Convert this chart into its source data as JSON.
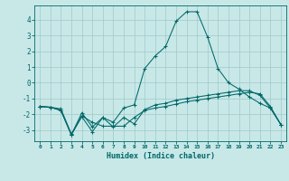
{
  "background_color": "#c8e8e8",
  "grid_color": "#a0c8c8",
  "line_color": "#006868",
  "xlabel": "Humidex (Indice chaleur)",
  "xlim": [
    -0.5,
    23.5
  ],
  "ylim": [
    -3.7,
    4.9
  ],
  "yticks": [
    -3,
    -2,
    -1,
    0,
    1,
    2,
    3,
    4
  ],
  "xticks": [
    0,
    1,
    2,
    3,
    4,
    5,
    6,
    7,
    8,
    9,
    10,
    11,
    12,
    13,
    14,
    15,
    16,
    17,
    18,
    19,
    20,
    21,
    22,
    23
  ],
  "series": [
    {
      "x": [
        0,
        1,
        2,
        3,
        4,
        5,
        6,
        7,
        8,
        9,
        10,
        11,
        12,
        13,
        14,
        15,
        16,
        17,
        18,
        19,
        20,
        21,
        22,
        23
      ],
      "y": [
        -1.5,
        -1.55,
        -1.65,
        -3.25,
        -2.1,
        -2.5,
        -2.75,
        -2.75,
        -2.75,
        -2.2,
        -1.75,
        -1.6,
        -1.5,
        -1.35,
        -1.2,
        -1.1,
        -1.0,
        -0.9,
        -0.8,
        -0.7,
        -0.6,
        -0.7,
        -1.5,
        -2.65
      ]
    },
    {
      "x": [
        0,
        1,
        2,
        3,
        4,
        5,
        6,
        7,
        8,
        9,
        10,
        11,
        12,
        13,
        14,
        15,
        16,
        17,
        18,
        19,
        20,
        21,
        22,
        23
      ],
      "y": [
        -1.5,
        -1.55,
        -1.75,
        -3.3,
        -2.15,
        -3.1,
        -2.2,
        -2.8,
        -2.2,
        -2.6,
        -1.7,
        -1.4,
        -1.3,
        -1.1,
        -1.0,
        -0.9,
        -0.8,
        -0.7,
        -0.6,
        -0.5,
        -0.5,
        -0.8,
        -1.6,
        -2.65
      ]
    },
    {
      "x": [
        0,
        1,
        2,
        3,
        4,
        5,
        6,
        7,
        8,
        9,
        10,
        11,
        12,
        13,
        14,
        15,
        16,
        17,
        18,
        19,
        20,
        21,
        22,
        23
      ],
      "y": [
        -1.5,
        -1.55,
        -1.75,
        -3.3,
        -1.9,
        -2.8,
        -2.2,
        -2.5,
        -1.6,
        -1.4,
        0.9,
        1.7,
        2.3,
        3.9,
        4.5,
        4.5,
        2.9,
        0.9,
        0.0,
        -0.4,
        -0.9,
        -1.3,
        -1.6,
        -2.65
      ]
    }
  ]
}
